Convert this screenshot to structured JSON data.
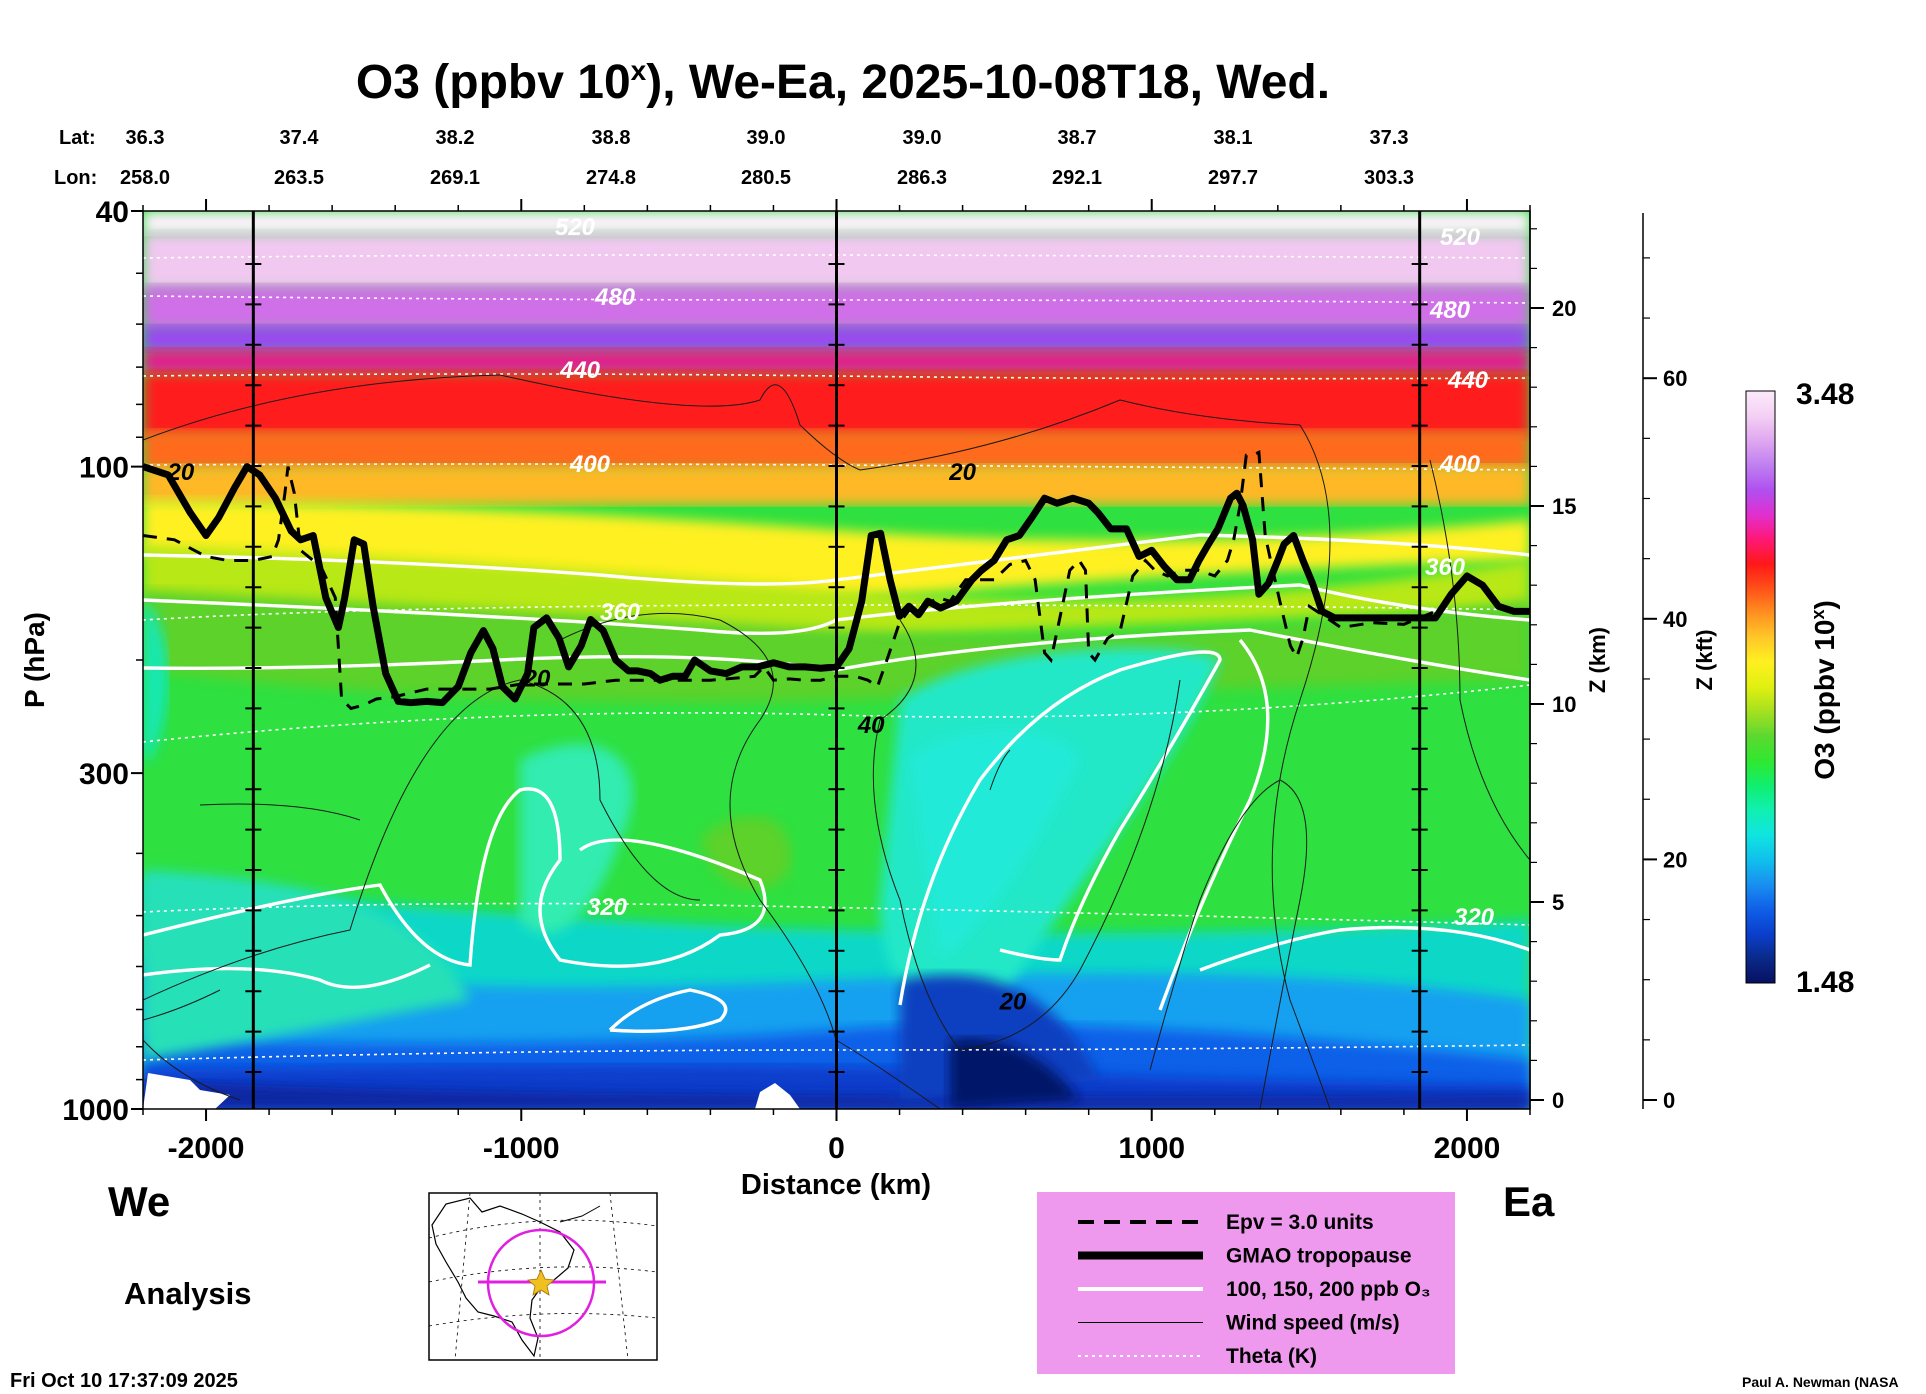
{
  "chart_data": {
    "type": "heatmap",
    "title_main": "O3 (ppbv 10",
    "title_sup": "x",
    "title_rest": "), We-Ea, 2025-10-08T18, Wed.",
    "lat_label": "Lat:",
    "lon_label": "Lon:",
    "lats": [
      "36.3",
      "37.4",
      "38.2",
      "38.8",
      "39.0",
      "39.0",
      "38.7",
      "38.1",
      "37.3"
    ],
    "lons": [
      "258.0",
      "263.5",
      "269.1",
      "274.8",
      "280.5",
      "286.3",
      "292.1",
      "297.7",
      "303.3"
    ],
    "xlabel": "Distance (km)",
    "xlim": [
      -2200,
      2200
    ],
    "xticks": [
      -2000,
      -1000,
      0,
      1000,
      2000
    ],
    "xtick_labels": [
      "-2000",
      "-1000",
      "0",
      "1000",
      "2000"
    ],
    "ylabel": "P (hPa)",
    "ylim": [
      1000,
      40
    ],
    "yticks": [
      1000,
      300,
      100,
      40
    ],
    "ytick_labels": [
      "1000",
      "300",
      "100",
      "40"
    ],
    "z_km_label": "Z (km)",
    "z_km_ticks": [
      0,
      5,
      10,
      15,
      20
    ],
    "z_km_tick_labels": [
      "0",
      "5",
      "10",
      "15",
      "20"
    ],
    "z_kft_label": "Z (kft)",
    "z_kft_ticks": [
      0,
      20,
      40,
      60
    ],
    "z_kft_tick_labels": [
      "0",
      "20",
      "40",
      "60"
    ],
    "vertical_marker_lines_km": [
      -1850,
      0,
      1850
    ],
    "colorbar": {
      "label": "O3 (ppbv 10",
      "label_sup": "x",
      "label_end": ")",
      "min_label": "1.48",
      "max_label": "3.48",
      "min": 1.48,
      "max": 3.48,
      "colors": [
        "#061060",
        "#0a2a8a",
        "#0a3fcc",
        "#1060e8",
        "#1890f0",
        "#10c0ec",
        "#10e4e0",
        "#10f0b0",
        "#10ee70",
        "#30e830",
        "#5cd830",
        "#a4e020",
        "#e0f010",
        "#fff020",
        "#ffc828",
        "#ff9020",
        "#ff5018",
        "#ff1818",
        "#ff1878",
        "#e030d0",
        "#b050f0",
        "#c080f0",
        "#e0a8f0",
        "#f4d0f4",
        "#fbeafa"
      ]
    },
    "theta_contours": [
      {
        "label": "320",
        "label_positions_km": [
          -750,
          2000
        ]
      },
      {
        "label": "360",
        "label_positions_km": [
          -700,
          1950
        ]
      },
      {
        "label": "400",
        "label_positions_km": [
          -800,
          2000
        ]
      },
      {
        "label": "440",
        "label_positions_km": [
          -850,
          2000
        ]
      },
      {
        "label": "480",
        "label_positions_km": [
          -700,
          1900
        ]
      },
      {
        "label": "520",
        "label_positions_km": [
          -800,
          1950
        ]
      }
    ],
    "wind_contour_labels": [
      {
        "label": "20",
        "x_km": 400,
        "p_hpa": 105
      },
      {
        "label": "40",
        "x_km": 110,
        "p_hpa": 260
      },
      {
        "label": "20",
        "x_km": 560,
        "p_hpa": 700
      },
      {
        "label": "20",
        "x_km": -950,
        "p_hpa": 220
      },
      {
        "label": "20",
        "x_km": -2080,
        "p_hpa": 105
      }
    ],
    "tropopause_gmao": {
      "x_km": [
        -2200,
        -2120,
        -2050,
        -2000,
        -1960,
        -1910,
        -1870,
        -1830,
        -1780,
        -1730,
        -1700,
        -1660,
        -1620,
        -1580,
        -1560,
        -1530,
        -1500,
        -1470,
        -1430,
        -1390,
        -1350,
        -1300,
        -1250,
        -1200,
        -1160,
        -1120,
        -1090,
        -1060,
        -1020,
        -980,
        -960,
        -920,
        -880,
        -850,
        -810,
        -780,
        -740,
        -700,
        -660,
        -630,
        -590,
        -560,
        -520,
        -480,
        -450,
        -400,
        -350,
        -300,
        -250,
        -200,
        -150,
        -100,
        -50,
        0,
        40,
        80,
        110,
        140,
        170,
        200,
        230,
        260,
        290,
        330,
        380,
        430,
        460,
        500,
        540,
        580,
        620,
        660,
        700,
        750,
        800,
        830,
        870,
        920,
        960,
        1000,
        1040,
        1080,
        1120,
        1150,
        1180,
        1210,
        1250,
        1270,
        1290,
        1320,
        1340,
        1370,
        1400,
        1420,
        1450,
        1480,
        1510,
        1540,
        1580,
        1620,
        1700,
        1800,
        1900,
        1950,
        2000,
        2050,
        2100,
        2150,
        2200
      ],
      "p_hpa": [
        100,
        103,
        118,
        128,
        120,
        108,
        100,
        103,
        112,
        126,
        130,
        128,
        160,
        178,
        160,
        130,
        132,
        165,
        210,
        232,
        233,
        232,
        233,
        220,
        195,
        180,
        192,
        220,
        230,
        210,
        178,
        172,
        185,
        205,
        190,
        173,
        180,
        200,
        208,
        208,
        210,
        215,
        212,
        212,
        200,
        208,
        210,
        205,
        205,
        202,
        205,
        205,
        206,
        205,
        192,
        162,
        128,
        127,
        150,
        171,
        165,
        170,
        162,
        166,
        162,
        150,
        145,
        140,
        130,
        128,
        120,
        112,
        114,
        112,
        114,
        118,
        125,
        125,
        138,
        135,
        143,
        150,
        150,
        140,
        132,
        125,
        112,
        110,
        115,
        130,
        158,
        152,
        140,
        132,
        128,
        140,
        152,
        168,
        172,
        172,
        172,
        172,
        172,
        158,
        148,
        153,
        165,
        168,
        168
      ]
    },
    "epv_3_units": {
      "x_km": [
        -2200,
        -2100,
        -2000,
        -1930,
        -1850,
        -1790,
        -1770,
        -1750,
        -1740,
        -1720,
        -1700,
        -1660,
        -1630,
        -1590,
        -1570,
        -1540,
        -1500,
        -1460,
        -1400,
        -1300,
        -1200,
        -1100,
        -1000,
        -950,
        -900,
        -800,
        -700,
        -600,
        -500,
        -400,
        -300,
        -260,
        -230,
        -200,
        -150,
        -100,
        -50,
        0,
        60,
        100,
        130,
        160,
        200,
        240,
        280,
        320,
        360,
        410,
        460,
        500,
        550,
        600,
        630,
        660,
        680,
        700,
        740,
        770,
        790,
        800,
        820,
        860,
        900,
        940,
        980,
        1010,
        1050,
        1100,
        1150,
        1200,
        1240,
        1260,
        1280,
        1300,
        1320,
        1340,
        1360,
        1380,
        1410,
        1440,
        1460,
        1480,
        1500,
        1540,
        1600,
        1700,
        1800,
        1850,
        1900
      ],
      "p_hpa": [
        128,
        130,
        138,
        140,
        140,
        138,
        130,
        110,
        100,
        110,
        135,
        140,
        145,
        160,
        230,
        238,
        235,
        230,
        228,
        222,
        222,
        222,
        218,
        218,
        218,
        218,
        215,
        215,
        215,
        215,
        213,
        212,
        205,
        215,
        214,
        215,
        215,
        212,
        212,
        215,
        220,
        200,
        175,
        165,
        165,
        160,
        162,
        150,
        150,
        150,
        142,
        140,
        150,
        195,
        200,
        180,
        145,
        140,
        145,
        195,
        200,
        185,
        180,
        148,
        140,
        145,
        148,
        145,
        145,
        148,
        140,
        130,
        115,
        96,
        96,
        95,
        128,
        142,
        165,
        190,
        198,
        185,
        165,
        170,
        178,
        175,
        176,
        172,
        168
      ]
    },
    "legend": {
      "items": [
        {
          "label": "Epv = 3.0 units",
          "style": "dashed"
        },
        {
          "label": "GMAO tropopause",
          "style": "thick"
        },
        {
          "label": "100, 150, 200 ppb O₃",
          "style": "white"
        },
        {
          "label": "Wind speed (m/s)",
          "style": "thin"
        },
        {
          "label": "Theta (K)",
          "style": "dotted"
        }
      ]
    },
    "dir_west": "We",
    "dir_east": "Ea",
    "analysis_label": "Analysis",
    "timestamp": "Fri Oct 10 17:37:09 2025",
    "credit": "Paul A. Newman (NASA"
  }
}
